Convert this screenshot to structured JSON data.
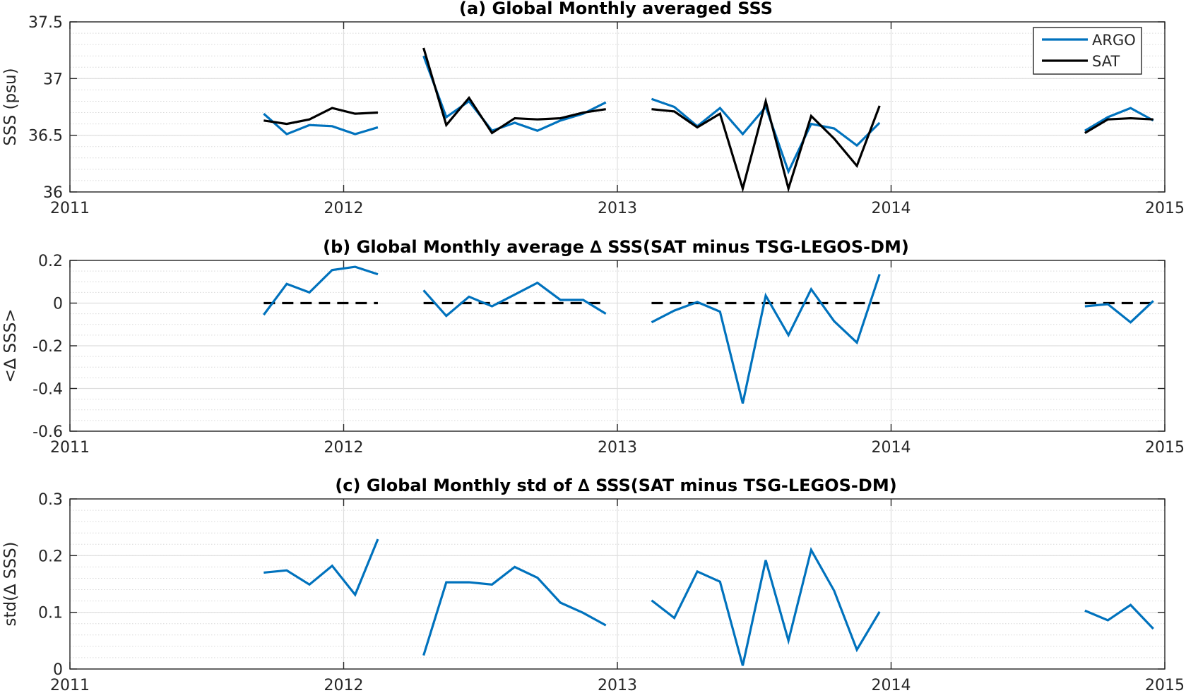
{
  "colors": {
    "argo": "#0072BD",
    "sat": "#000000",
    "zero_line": "#000000"
  },
  "chart_data": [
    {
      "type": "line",
      "title": "(a) Global Monthly averaged SSS",
      "xlabel": "",
      "ylabel": "SSS (psu)",
      "xlim": [
        2011,
        2015
      ],
      "ylim": [
        36,
        37.5
      ],
      "xticks": [
        2011,
        2012,
        2013,
        2014,
        2015
      ],
      "xtick_labels": [
        "2011",
        "2012",
        "2013",
        "2014",
        "2015"
      ],
      "yticks": [
        36,
        36.5,
        37,
        37.5
      ],
      "ytick_labels": [
        "36",
        "36.5",
        "37",
        "37.5"
      ],
      "minor_step": 0.1,
      "grid": true,
      "legend": {
        "placement": "top-right",
        "entries": [
          "ARGO",
          "SAT"
        ]
      },
      "series": [
        {
          "name": "ARGO",
          "color": "#0072BD",
          "segments": [
            {
              "x": [
                2011.708,
                2011.792,
                2011.875,
                2011.958,
                2012.042,
                2012.125
              ],
              "y": [
                36.69,
                36.51,
                36.59,
                36.58,
                36.51,
                36.57
              ]
            },
            {
              "x": [
                2012.292,
                2012.375,
                2012.458,
                2012.542,
                2012.625,
                2012.708,
                2012.792,
                2012.875,
                2012.958
              ],
              "y": [
                37.2,
                36.66,
                36.8,
                36.54,
                36.61,
                36.54,
                36.63,
                36.69,
                36.79
              ]
            },
            {
              "x": [
                2013.125,
                2013.208,
                2013.292,
                2013.375,
                2013.458,
                2013.542,
                2013.625,
                2013.708,
                2013.792,
                2013.875,
                2013.958
              ],
              "y": [
                36.82,
                36.75,
                36.58,
                36.74,
                36.51,
                36.75,
                36.18,
                36.6,
                36.56,
                36.41,
                36.61
              ]
            },
            {
              "x": [
                2014.708,
                2014.792,
                2014.875,
                2014.958
              ],
              "y": [
                36.54,
                36.66,
                36.74,
                36.63
              ]
            }
          ]
        },
        {
          "name": "SAT",
          "color": "#000000",
          "segments": [
            {
              "x": [
                2011.708,
                2011.792,
                2011.875,
                2011.958,
                2012.042,
                2012.125
              ],
              "y": [
                36.63,
                36.6,
                36.64,
                36.74,
                36.69,
                36.7
              ]
            },
            {
              "x": [
                2012.292,
                2012.375,
                2012.458,
                2012.542,
                2012.625,
                2012.708,
                2012.792,
                2012.875,
                2012.958
              ],
              "y": [
                37.27,
                36.59,
                36.83,
                36.52,
                36.65,
                36.64,
                36.65,
                36.7,
                36.73
              ]
            },
            {
              "x": [
                2013.125,
                2013.208,
                2013.292,
                2013.375,
                2013.458,
                2013.542,
                2013.625,
                2013.708,
                2013.792,
                2013.875,
                2013.958
              ],
              "y": [
                36.73,
                36.71,
                36.57,
                36.69,
                36.03,
                36.8,
                36.03,
                36.67,
                36.47,
                36.23,
                36.76
              ]
            },
            {
              "x": [
                2014.708,
                2014.792,
                2014.875,
                2014.958
              ],
              "y": [
                36.52,
                36.64,
                36.65,
                36.64
              ]
            }
          ]
        }
      ]
    },
    {
      "type": "line",
      "title": "(b) Global Monthly average ∆ SSS(SAT minus TSG-LEGOS-DM)",
      "xlabel": "",
      "ylabel": "<∆ SSS>",
      "xlim": [
        2011,
        2015
      ],
      "ylim": [
        -0.6,
        0.2
      ],
      "xticks": [
        2011,
        2012,
        2013,
        2014,
        2015
      ],
      "xtick_labels": [
        "2011",
        "2012",
        "2013",
        "2014",
        "2015"
      ],
      "yticks": [
        -0.6,
        -0.4,
        -0.2,
        0,
        0.2
      ],
      "ytick_labels": [
        "-0.6",
        "-0.4",
        "-0.2",
        "0",
        "0.2"
      ],
      "minor_step": 0.05,
      "grid": true,
      "reference_segments": [
        {
          "x": [
            2011.708,
            2012.125
          ],
          "y": [
            0,
            0
          ]
        },
        {
          "x": [
            2012.292,
            2012.958
          ],
          "y": [
            0,
            0
          ]
        },
        {
          "x": [
            2013.125,
            2013.958
          ],
          "y": [
            0,
            0
          ]
        },
        {
          "x": [
            2014.708,
            2014.958
          ],
          "y": [
            0,
            0
          ]
        }
      ],
      "series": [
        {
          "color": "#0072BD",
          "segments": [
            {
              "x": [
                2011.708,
                2011.792,
                2011.875,
                2011.958,
                2012.042,
                2012.125
              ],
              "y": [
                -0.055,
                0.09,
                0.05,
                0.155,
                0.17,
                0.135
              ]
            },
            {
              "x": [
                2012.292,
                2012.375,
                2012.458,
                2012.542,
                2012.625,
                2012.708,
                2012.792,
                2012.875,
                2012.958
              ],
              "y": [
                0.06,
                -0.06,
                0.03,
                -0.015,
                0.04,
                0.095,
                0.015,
                0.015,
                -0.05
              ]
            },
            {
              "x": [
                2013.125,
                2013.208,
                2013.292,
                2013.375,
                2013.458,
                2013.542,
                2013.625,
                2013.708,
                2013.792,
                2013.875,
                2013.958
              ],
              "y": [
                -0.09,
                -0.035,
                0.005,
                -0.04,
                -0.47,
                0.035,
                -0.15,
                0.065,
                -0.085,
                -0.185,
                0.135
              ]
            },
            {
              "x": [
                2014.708,
                2014.792,
                2014.875,
                2014.958
              ],
              "y": [
                -0.015,
                -0.005,
                -0.09,
                0.01
              ]
            }
          ]
        }
      ]
    },
    {
      "type": "line",
      "title": "(c) Global Monthly std of ∆ SSS(SAT minus TSG-LEGOS-DM)",
      "xlabel": "",
      "ylabel": "std(∆ SSS)",
      "xlim": [
        2011,
        2015
      ],
      "ylim": [
        0,
        0.3
      ],
      "xticks": [
        2011,
        2012,
        2013,
        2014,
        2015
      ],
      "xtick_labels": [
        "2011",
        "2012",
        "2013",
        "2014",
        "2015"
      ],
      "yticks": [
        0,
        0.1,
        0.2,
        0.3
      ],
      "ytick_labels": [
        "0",
        "0.1",
        "0.2",
        "0.3"
      ],
      "minor_step": 0.02,
      "grid": true,
      "series": [
        {
          "color": "#0072BD",
          "segments": [
            {
              "x": [
                2011.708,
                2011.792,
                2011.875,
                2011.958,
                2012.042,
                2012.125
              ],
              "y": [
                0.17,
                0.174,
                0.149,
                0.182,
                0.131,
                0.229
              ]
            },
            {
              "x": [
                2012.292,
                2012.375,
                2012.458,
                2012.542,
                2012.625,
                2012.708,
                2012.792,
                2012.875,
                2012.958
              ],
              "y": [
                0.024,
                0.153,
                0.153,
                0.149,
                0.18,
                0.161,
                0.117,
                0.099,
                0.077
              ]
            },
            {
              "x": [
                2013.125,
                2013.208,
                2013.292,
                2013.375,
                2013.458,
                2013.542,
                2013.625,
                2013.708,
                2013.792,
                2013.875,
                2013.958
              ],
              "y": [
                0.121,
                0.09,
                0.172,
                0.154,
                0.006,
                0.192,
                0.05,
                0.21,
                0.138,
                0.034,
                0.101
              ]
            },
            {
              "x": [
                2014.708,
                2014.792,
                2014.875,
                2014.958
              ],
              "y": [
                0.103,
                0.086,
                0.113,
                0.071
              ]
            }
          ]
        }
      ]
    }
  ]
}
